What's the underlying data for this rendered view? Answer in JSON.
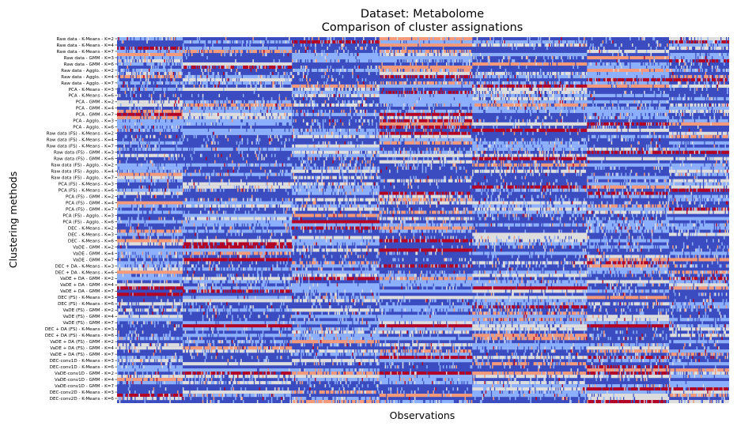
{
  "chart_data": {
    "type": "heatmap",
    "title": "Dataset: Metabolome",
    "subtitle": "Comparison of cluster assignations",
    "xlabel": "Observations",
    "ylabel": "Clustering methods",
    "colormap": "coolwarm",
    "colors": {
      "low": "#3b4cc0",
      "mid_low": "#8db0fe",
      "mid": "#dddddd",
      "mid_high": "#f49a7b",
      "high": "#b40426"
    },
    "n_observations": 560,
    "row_labels": [
      "Raw data - K-Means - K=2",
      "Raw data - K-Means - K=4",
      "Raw data - K-Means - K=7",
      "Raw data - GMM - K=3",
      "Raw data - GMM - K=6",
      "Raw data - Agglo. - K=2",
      "Raw data - Agglo. - K=4",
      "Raw data - Agglo. - K=7",
      "PCA - K-Means - K=3",
      "PCA - K-Means - K=6",
      "PCA - GMM - K=2",
      "PCA - GMM - K=4",
      "PCA - GMM - K=7",
      "PCA - Agglo. - K=3",
      "PCA - Agglo. - K=6",
      "Raw data (FS) - K-Means - K=2",
      "Raw data (FS) - K-Means - K=4",
      "Raw data (FS) - K-Means - K=7",
      "Raw data (FS) - GMM - K=3",
      "Raw data (FS) - GMM - K=6",
      "Raw data (FS) - Agglo. - K=2",
      "Raw data (FS) - Agglo. - K=4",
      "Raw data (FS) - Agglo. - K=7",
      "PCA (FS) - K-Means - K=3",
      "PCA (FS) - K-Means - K=6",
      "PCA (FS) - GMM - K=2",
      "PCA (FS) - GMM - K=4",
      "PCA (FS) - GMM - K=7",
      "PCA (FS) - Agglo. - K=3",
      "PCA (FS) - Agglo. - K=6",
      "DEC - K-Means - K=2",
      "DEC - K-Means - K=3",
      "DEC - K-Means - K=6",
      "VaDE - GMM - K=2",
      "VaDE - GMM - K=4",
      "VaDE - GMM - K=7",
      "DEC + DA - K-Means - K=3",
      "DEC + DA - K-Means - K=6",
      "VaDE + DA - GMM - K=2",
      "VaDE + DA - GMM - K=4",
      "VaDE + DA - GMM - K=7",
      "DEC (FS) - K-Means - K=3",
      "DEC (FS) - K-Means - K=6",
      "VaDE (FS) - GMM - K=2",
      "VaDE (FS) - GMM - K=4",
      "VaDE (FS) - GMM - K=7",
      "DEC + DA (FS) - K-Means - K=3",
      "DEC + DA (FS) - K-Means - K=6",
      "VaDE + DA (FS) - GMM - K=2",
      "VaDE + DA (FS) - GMM - K=4",
      "VaDE + DA (FS) - GMM - K=7",
      "DEC-conv1D - K-Means - K=3",
      "DEC-conv1D - K-Means - K=6",
      "VaDE-conv1D - GMM - K=2",
      "VaDE-conv1D - GMM - K=4",
      "VaDE-conv1D - GMM - K=7",
      "DEC-conv2D - K-Means - K=3",
      "DEC-conv2D - K-Means - K=6"
    ],
    "rows_per_label": 2,
    "observation_groups": [
      0,
      60,
      160,
      240,
      325,
      430,
      505,
      560
    ],
    "grid": false
  }
}
